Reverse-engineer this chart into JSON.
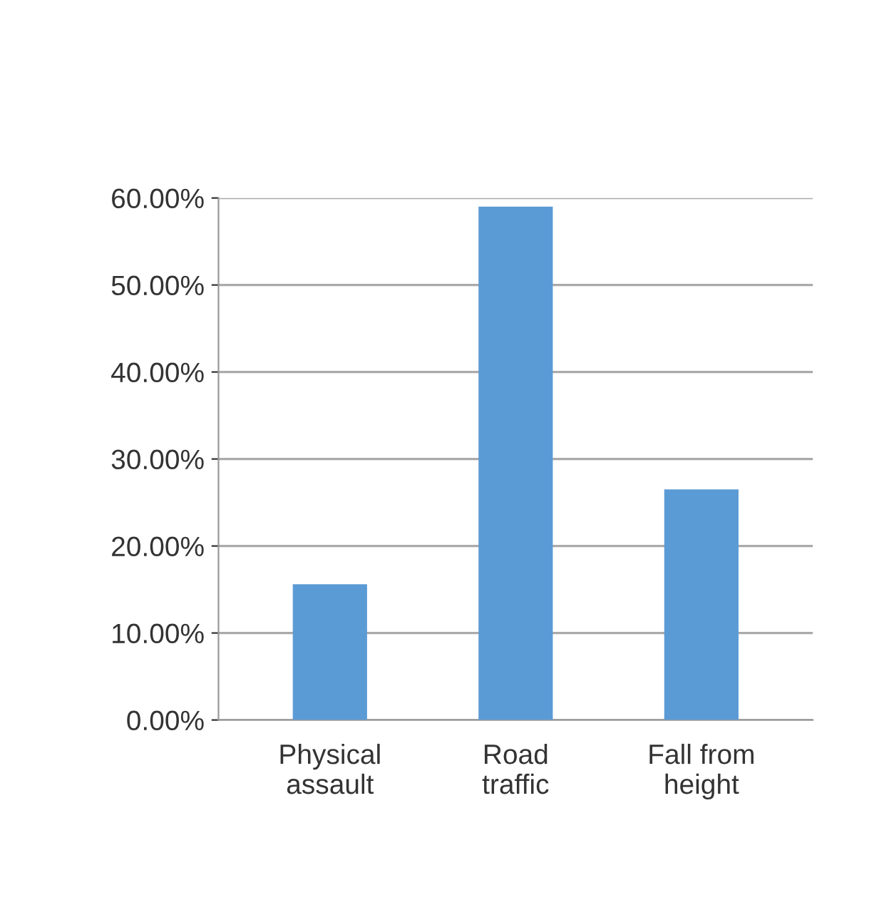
{
  "chart_data": {
    "type": "bar",
    "categories": [
      "Physical\nassault",
      "Road\ntraffic",
      "Fall from\nheight"
    ],
    "values": [
      15.6,
      59.0,
      26.5
    ],
    "color": "#5b9bd5",
    "ylim": [
      0,
      60
    ],
    "yticks": [
      {
        "value": 0,
        "label": "0.00%"
      },
      {
        "value": 10,
        "label": "10.00%"
      },
      {
        "value": 20,
        "label": "20.00%"
      },
      {
        "value": 30,
        "label": "30.00%"
      },
      {
        "value": 40,
        "label": "40.00%"
      },
      {
        "value": 50,
        "label": "50.00%"
      },
      {
        "value": 60,
        "label": "60.00%"
      }
    ],
    "grid": "y"
  }
}
